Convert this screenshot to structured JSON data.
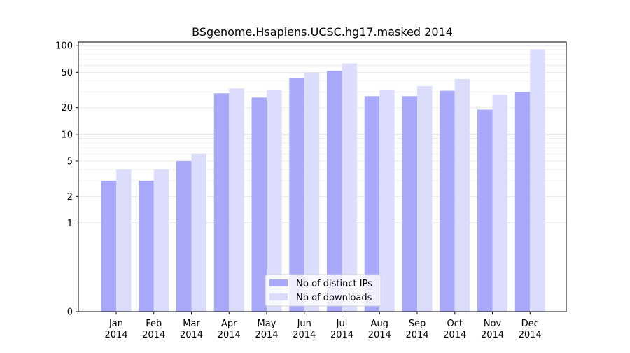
{
  "chart_data": {
    "type": "bar",
    "title": "BSgenome.Hsapiens.UCSC.hg17.masked 2014",
    "xlabel": "",
    "ylabel": "",
    "yscale": "symlog",
    "ylim": [
      0,
      110
    ],
    "yticks": [
      0,
      1,
      2,
      5,
      10,
      20,
      50,
      100
    ],
    "ytick_labels": [
      "0",
      "1",
      "2",
      "5",
      "10",
      "20",
      "50",
      "100"
    ],
    "categories": [
      "Jan\n2014",
      "Feb\n2014",
      "Mar\n2014",
      "Apr\n2014",
      "May\n2014",
      "Jun\n2014",
      "Jul\n2014",
      "Aug\n2014",
      "Sep\n2014",
      "Oct\n2014",
      "Nov\n2014",
      "Dec\n2014"
    ],
    "series": [
      {
        "name": "Nb of distinct IPs",
        "color": "#a9a9fc",
        "values": [
          3,
          3,
          5,
          29,
          26,
          43,
          52,
          27,
          27,
          31,
          19,
          30
        ]
      },
      {
        "name": "Nb of downloads",
        "color": "#dcdcfc",
        "values": [
          4,
          4,
          6,
          33,
          32,
          50,
          63,
          32,
          35,
          42,
          28,
          91
        ]
      }
    ],
    "grid": true,
    "legend_position": "bottom-center"
  }
}
